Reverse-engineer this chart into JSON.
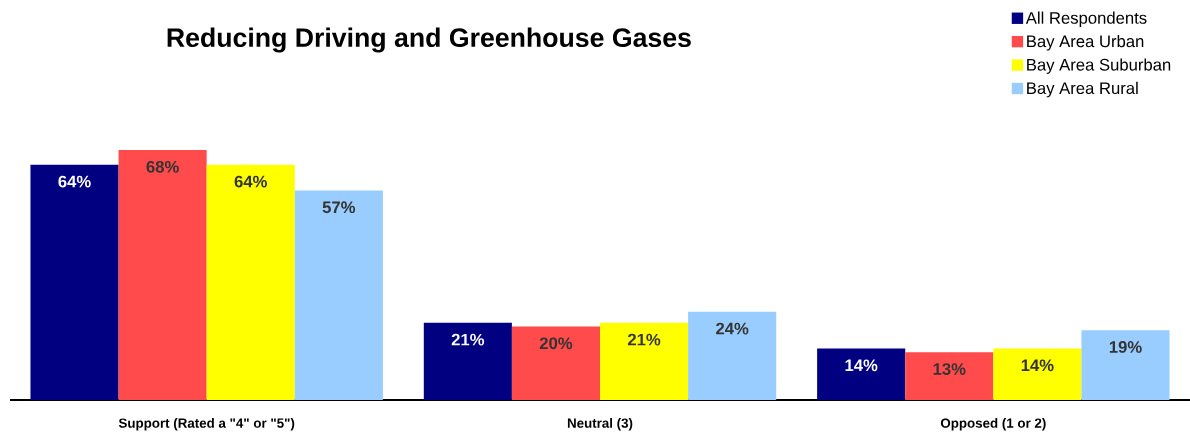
{
  "chart_data": {
    "type": "bar",
    "title": "Reducing Driving and Greenhouse Gases",
    "categories": [
      "Support (Rated a \"4\" or \"5\")",
      "Neutral (3)",
      "Opposed (1 or 2)"
    ],
    "series": [
      {
        "name": "All Respondents",
        "color": "#000080",
        "values": [
          64,
          21,
          14
        ],
        "value_labels": [
          "64%",
          "21%",
          "14%"
        ]
      },
      {
        "name": "Bay Area Urban",
        "color": "#ff4b4b",
        "values": [
          68,
          20,
          13
        ],
        "value_labels": [
          "68%",
          "20%",
          "13%"
        ]
      },
      {
        "name": "Bay Area Suburban",
        "color": "#ffff00",
        "values": [
          64,
          21,
          14
        ],
        "value_labels": [
          "64%",
          "21%",
          "14%"
        ]
      },
      {
        "name": "Bay Area Rural",
        "color": "#99ccff",
        "values": [
          57,
          24,
          19
        ],
        "value_labels": [
          "57%",
          "24%",
          "19%"
        ]
      }
    ],
    "legend": "top right"
  }
}
